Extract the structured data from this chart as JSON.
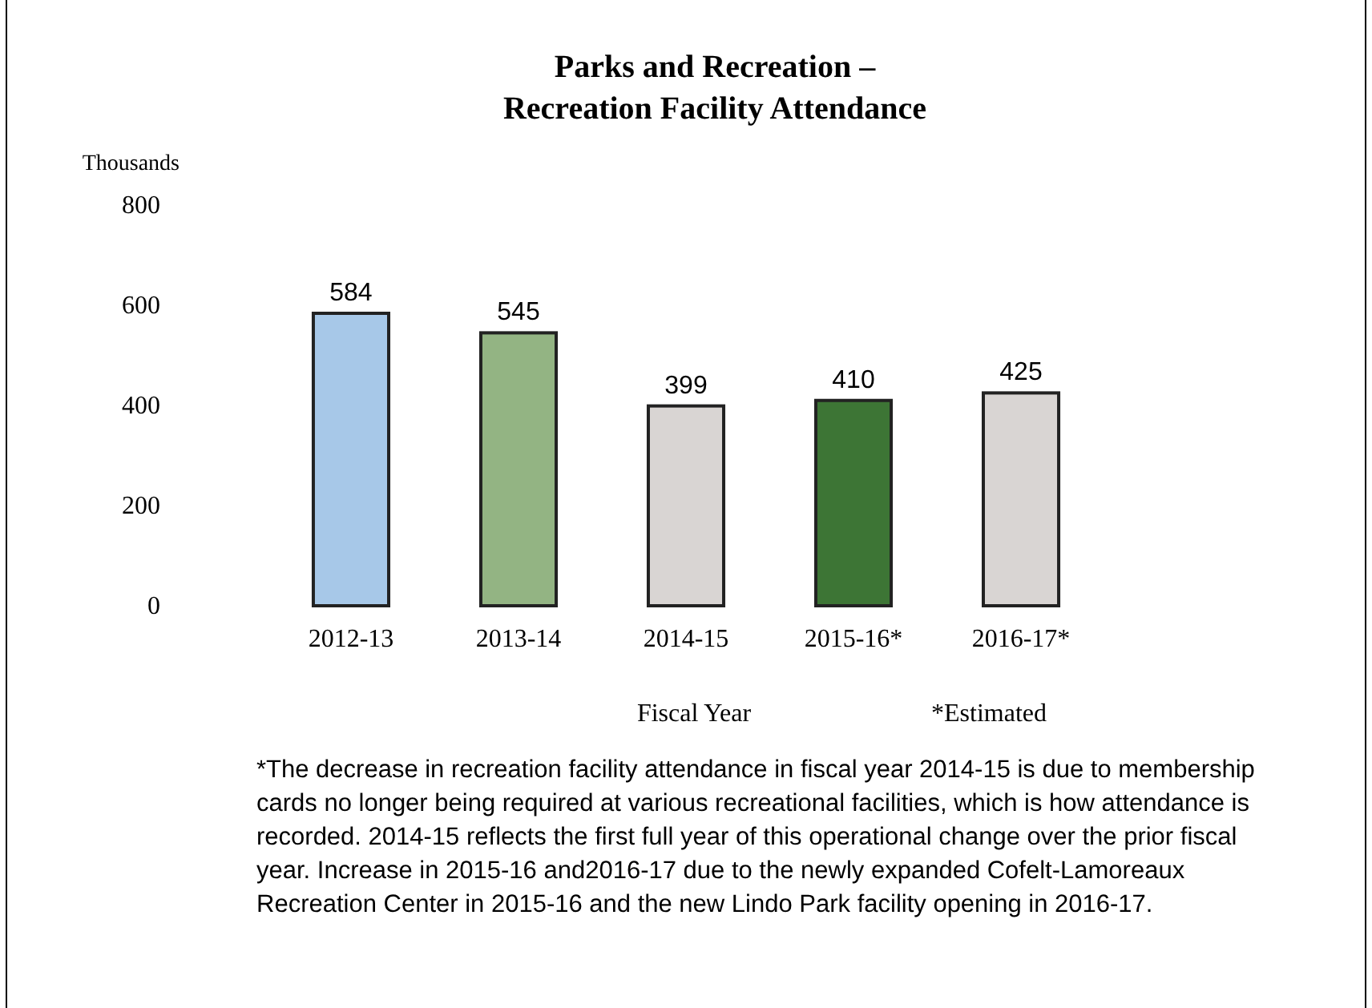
{
  "chart_data": {
    "type": "bar",
    "title": "Parks and Recreation –\nRecreation Facility Attendance",
    "ylabel": "Thousands",
    "xlabel": "Fiscal Year",
    "categories": [
      "2012-13",
      "2013-14",
      "2014-15",
      "2015-16*",
      "2016-17*"
    ],
    "values": [
      584,
      545,
      399,
      410,
      425
    ],
    "colors": [
      "#a7c8e8",
      "#93b483",
      "#d9d5d3",
      "#3d7535",
      "#d9d5d3"
    ],
    "ylim": [
      0,
      800
    ],
    "yticks": [
      0,
      200,
      400,
      600,
      800
    ],
    "grid": false,
    "data_labels": true,
    "annotations": [
      "*Estimated",
      "*The decrease in recreation facility attendance in fiscal year 2014-15 is due to membership cards no longer being required at various recreational facilities, which is how attendance is recorded.  2014-15 reflects the first full year of this operational change over the prior fiscal year. Increase in 2015-16 and2016-17 due to the newly expanded Cofelt-Lamoreaux Recreation Center in 2015-16 and the new Lindo Park facility opening in 2016-17."
    ]
  }
}
